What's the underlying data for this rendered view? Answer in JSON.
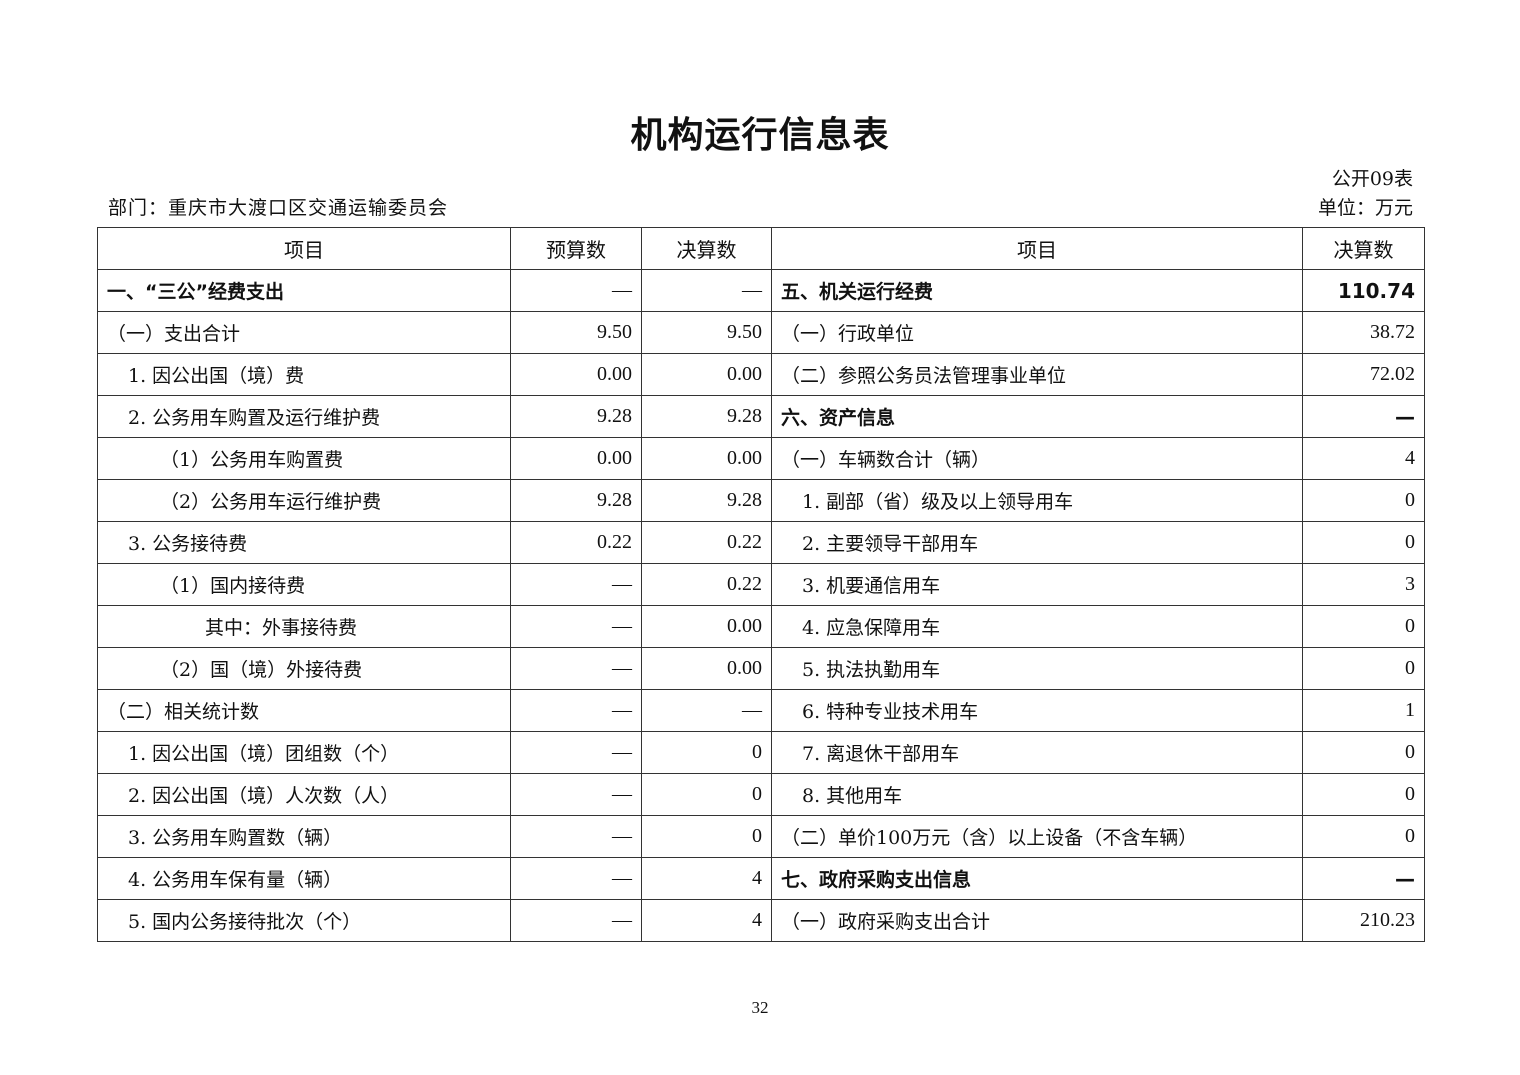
{
  "title": "机构运行信息表",
  "table_no": "公开09表",
  "department": "部门：重庆市大渡口区交通运输委员会",
  "unit": "单位：万元",
  "headers": [
    "项目",
    "预算数",
    "决算数",
    "项目",
    "决算数"
  ],
  "rows": [
    {
      "left": "一、“三公”经费支出",
      "lb": true,
      "ll": 0,
      "budget": "—",
      "final": "—",
      "right": "五、机关运行经费",
      "rb": true,
      "rl": 0,
      "value": "110.74"
    },
    {
      "left": "（一）支出合计",
      "ll": 0,
      "budget": "9.50",
      "final": "9.50",
      "right": "（一）行政单位",
      "rl": 0,
      "value": "38.72"
    },
    {
      "left": "1. 因公出国（境）费",
      "ll": 1,
      "budget": "0.00",
      "final": "0.00",
      "right": "（二）参照公务员法管理事业单位",
      "rl": 0,
      "value": "72.02"
    },
    {
      "left": "2. 公务用车购置及运行维护费",
      "ll": 1,
      "budget": "9.28",
      "final": "9.28",
      "right": "六、资产信息",
      "rb": true,
      "rl": 0,
      "value": "—"
    },
    {
      "left": "（1）公务用车购置费",
      "ll": 2,
      "budget": "0.00",
      "final": "0.00",
      "right": "（一）车辆数合计（辆）",
      "rl": 0,
      "value": "4"
    },
    {
      "left": "（2）公务用车运行维护费",
      "ll": 2,
      "budget": "9.28",
      "final": "9.28",
      "right": "1. 副部（省）级及以上领导用车",
      "rl": 1,
      "value": "0"
    },
    {
      "left": "3. 公务接待费",
      "ll": 1,
      "budget": "0.22",
      "final": "0.22",
      "right": "2. 主要领导干部用车",
      "rl": 1,
      "value": "0"
    },
    {
      "left": "（1）国内接待费",
      "ll": 2,
      "budget": "—",
      "final": "0.22",
      "right": "3. 机要通信用车",
      "rl": 1,
      "value": "3"
    },
    {
      "left": "其中：外事接待费",
      "ll": 3,
      "budget": "—",
      "final": "0.00",
      "right": "4. 应急保障用车",
      "rl": 1,
      "value": "0"
    },
    {
      "left": "（2）国（境）外接待费",
      "ll": 2,
      "budget": "—",
      "final": "0.00",
      "right": "5. 执法执勤用车",
      "rl": 1,
      "value": "0"
    },
    {
      "left": "（二）相关统计数",
      "ll": 0,
      "budget": "—",
      "final": "—",
      "right": "6. 特种专业技术用车",
      "rl": 1,
      "value": "1"
    },
    {
      "left": "1. 因公出国（境）团组数（个）",
      "ll": 1,
      "budget": "—",
      "final": "0",
      "right": "7. 离退休干部用车",
      "rl": 1,
      "value": "0"
    },
    {
      "left": "2. 因公出国（境）人次数（人）",
      "ll": 1,
      "budget": "—",
      "final": "0",
      "right": "8. 其他用车",
      "rl": 1,
      "value": "0"
    },
    {
      "left": "3. 公务用车购置数（辆）",
      "ll": 1,
      "budget": "—",
      "final": "0",
      "right": "（二）单价100万元（含）以上设备（不含车辆）",
      "rl": 0,
      "value": "0"
    },
    {
      "left": "4. 公务用车保有量（辆）",
      "ll": 1,
      "budget": "—",
      "final": "4",
      "right": "七、政府采购支出信息",
      "rb": true,
      "rl": 0,
      "value": "—"
    },
    {
      "left": "5. 国内公务接待批次（个）",
      "ll": 1,
      "budget": "—",
      "final": "4",
      "right": "（一）政府采购支出合计",
      "rl": 0,
      "value": "210.23"
    }
  ],
  "page_number": "32"
}
